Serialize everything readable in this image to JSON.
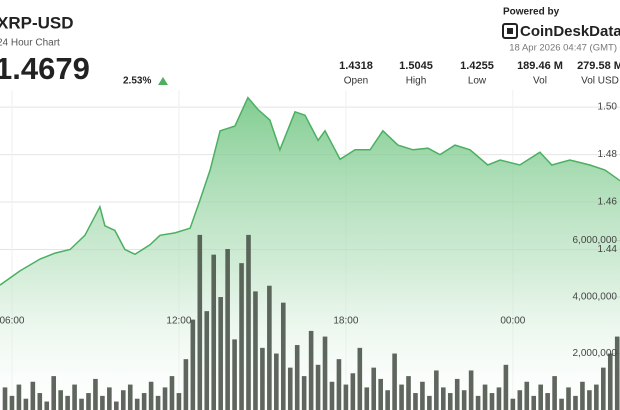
{
  "header": {
    "symbol": "XRP-USD",
    "subtitle": "24 Hour Chart",
    "price": "1.4679",
    "change": "2.53%",
    "powered_by": "Powered by",
    "brand": "CoinDeskData",
    "timestamp": "18 Apr 2026 04:47 (GMT)"
  },
  "stats": [
    {
      "value": "1.4318",
      "label": "Open"
    },
    {
      "value": "1.5045",
      "label": "High"
    },
    {
      "value": "1.4255",
      "label": "Low"
    },
    {
      "value": "189.46 M",
      "label": "Vol"
    },
    {
      "value": "279.58 M",
      "label": "Vol USD"
    }
  ],
  "chart_data": {
    "type": "line",
    "xlim": [
      5.57,
      27.85
    ],
    "xticks": [
      {
        "value": 6,
        "label": "06:00"
      },
      {
        "value": 12,
        "label": "12:00"
      },
      {
        "value": 18,
        "label": "18:00"
      },
      {
        "value": 24,
        "label": "00:00"
      }
    ],
    "ylim": [
      1.3724,
      1.5072
    ],
    "yticks": [
      1.44,
      1.46,
      1.48,
      {
        "value": 1.5,
        "label": "1.50"
      }
    ],
    "y2lim": [
      0,
      11330000
    ],
    "y2ticks": [
      {
        "value": 2000000,
        "label": "2,000,000"
      },
      {
        "value": 4000000,
        "label": "4,000,000"
      },
      {
        "value": 6000000,
        "label": "6,000,000"
      }
    ],
    "grid": true,
    "series": [
      {
        "color": "#4caf62",
        "x": [
          5.57,
          6.29,
          7.01,
          7.55,
          8.09,
          8.62,
          9.16,
          9.34,
          9.7,
          10.06,
          10.42,
          10.96,
          11.32,
          11.86,
          12.4,
          12.76,
          13.12,
          13.48,
          14.01,
          14.48,
          14.84,
          15.27,
          15.63,
          16.17,
          16.53,
          17.0,
          17.25,
          17.79,
          18.33,
          18.87,
          19.33,
          19.87,
          20.41,
          20.95,
          21.38,
          21.92,
          22.46,
          23.1,
          23.54,
          24.25,
          24.97,
          25.4,
          26.05,
          26.77,
          27.31,
          27.85
        ],
        "values": [
          1.425,
          1.431,
          1.436,
          1.4385,
          1.44,
          1.446,
          1.458,
          1.45,
          1.448,
          1.44,
          1.438,
          1.442,
          1.446,
          1.447,
          1.449,
          1.461,
          1.4735,
          1.49,
          1.492,
          1.504,
          1.499,
          1.4945,
          1.482,
          1.498,
          1.4966,
          1.486,
          1.49,
          1.478,
          1.482,
          1.482,
          1.49,
          1.484,
          1.482,
          1.4827,
          1.48,
          1.484,
          1.482,
          1.4756,
          1.4777,
          1.4756,
          1.481,
          1.4756,
          1.4777,
          1.4756,
          1.4735,
          1.469
        ]
      },
      {
        "type": "bar",
        "axis": "y2",
        "color": "#4d554b",
        "x": [
          5.75,
          6,
          6.25,
          6.5,
          6.75,
          7,
          7.25,
          7.5,
          7.75,
          8,
          8.25,
          8.5,
          8.75,
          9,
          9.25,
          9.5,
          9.75,
          10,
          10.25,
          10.5,
          10.75,
          11,
          11.25,
          11.5,
          11.75,
          12,
          12.25,
          12.5,
          12.75,
          13,
          13.25,
          13.5,
          13.75,
          14,
          14.25,
          14.5,
          14.75,
          15,
          15.25,
          15.5,
          15.75,
          16,
          16.25,
          16.5,
          16.75,
          17,
          17.25,
          17.5,
          17.75,
          18,
          18.25,
          18.5,
          18.75,
          19,
          19.25,
          19.5,
          19.75,
          20,
          20.25,
          20.5,
          20.75,
          21,
          21.25,
          21.5,
          21.75,
          22,
          22.25,
          22.5,
          22.75,
          23,
          23.25,
          23.5,
          23.75,
          24,
          24.25,
          24.5,
          24.75,
          25,
          25.25,
          25.5,
          25.75,
          26,
          26.25,
          26.5,
          26.75,
          27,
          27.25,
          27.5,
          27.75
        ],
        "values": [
          800000,
          500000,
          900000,
          400000,
          1000000,
          600000,
          300000,
          1200000,
          700000,
          500000,
          900000,
          400000,
          600000,
          1100000,
          500000,
          800000,
          300000,
          700000,
          900000,
          400000,
          600000,
          1000000,
          500000,
          800000,
          1200000,
          600000,
          1800000,
          3200000,
          6200000,
          3500000,
          5500000,
          4000000,
          5700000,
          2500000,
          5200000,
          6200000,
          4200000,
          2200000,
          4400000,
          2000000,
          3800000,
          1500000,
          2300000,
          1200000,
          2800000,
          1600000,
          2600000,
          1000000,
          1800000,
          900000,
          1300000,
          2200000,
          800000,
          1500000,
          1100000,
          700000,
          2000000,
          900000,
          1200000,
          600000,
          1000000,
          500000,
          1400000,
          800000,
          600000,
          1100000,
          700000,
          1400000,
          500000,
          900000,
          600000,
          800000,
          1600000,
          400000,
          700000,
          1000000,
          500000,
          900000,
          600000,
          1200000,
          400000,
          800000,
          500000,
          1000000,
          700000,
          900000,
          1500000,
          2000000,
          2600000
        ]
      }
    ]
  }
}
